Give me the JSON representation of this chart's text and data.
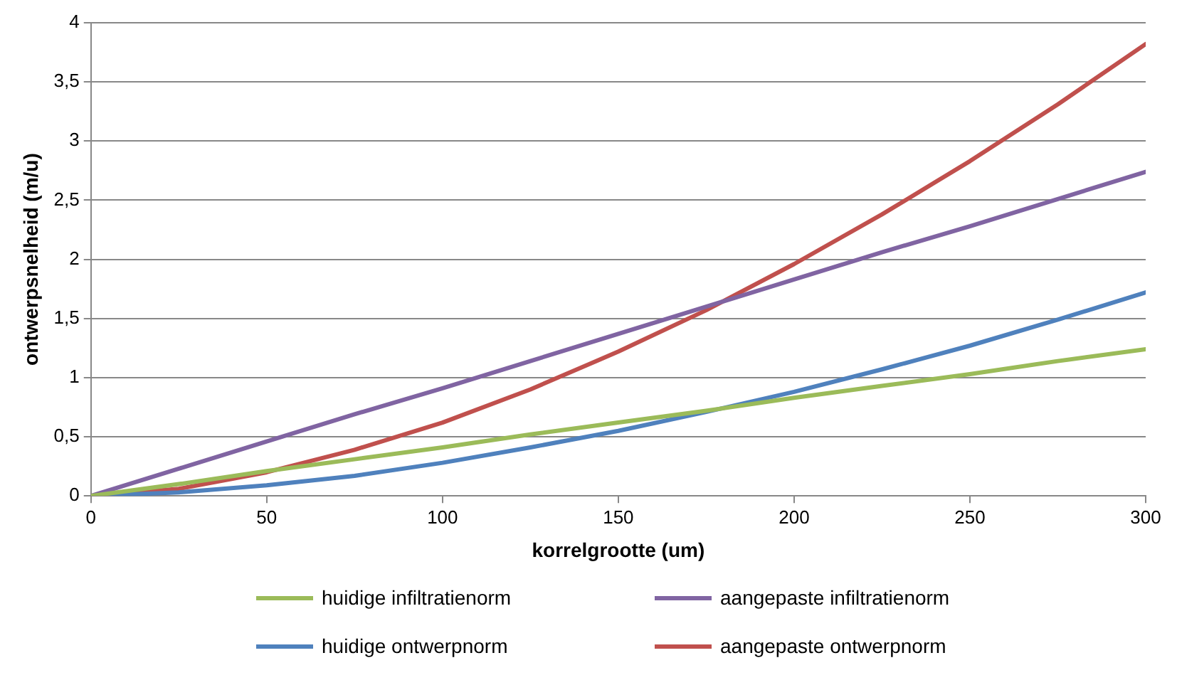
{
  "chart_data": {
    "type": "line",
    "xlabel": "korrelgrootte (um)",
    "ylabel": "ontwerpsnelheid (m/u)",
    "x": [
      0,
      25,
      50,
      75,
      100,
      125,
      150,
      175,
      200,
      225,
      250,
      275,
      300
    ],
    "series": [
      {
        "name": "huidige infiltratienorm",
        "color": "#9bbb59",
        "values": [
          0,
          0.1,
          0.21,
          0.31,
          0.41,
          0.52,
          0.62,
          0.72,
          0.83,
          0.93,
          1.03,
          1.14,
          1.24
        ]
      },
      {
        "name": "aangepaste infiltratienorm",
        "color": "#8064a2",
        "values": [
          0,
          0.23,
          0.46,
          0.69,
          0.91,
          1.14,
          1.37,
          1.6,
          1.83,
          2.06,
          2.28,
          2.51,
          2.74
        ]
      },
      {
        "name": "huidige ontwerpnorm",
        "color": "#4f81bd",
        "values": [
          0,
          0.03,
          0.09,
          0.17,
          0.28,
          0.41,
          0.55,
          0.71,
          0.88,
          1.07,
          1.27,
          1.49,
          1.72
        ]
      },
      {
        "name": "aangepaste ontwerpnorm",
        "color": "#c0504d",
        "values": [
          0,
          0.06,
          0.2,
          0.39,
          0.62,
          0.9,
          1.22,
          1.57,
          1.96,
          2.38,
          2.83,
          3.31,
          3.82
        ]
      }
    ],
    "xlim": [
      0,
      300
    ],
    "xticks": [
      0,
      50,
      100,
      150,
      200,
      250,
      300
    ],
    "ylim": [
      0,
      4
    ],
    "yticks": [
      {
        "value": 0,
        "label": "0"
      },
      {
        "value": 0.5,
        "label": "0,5"
      },
      {
        "value": 1,
        "label": "1"
      },
      {
        "value": 1.5,
        "label": "1,5"
      },
      {
        "value": 2,
        "label": "2"
      },
      {
        "value": 2.5,
        "label": "2,5"
      },
      {
        "value": 3,
        "label": "3"
      },
      {
        "value": 3.5,
        "label": "3,5"
      },
      {
        "value": 4,
        "label": "4"
      }
    ],
    "grid": "y",
    "legend": "bottom",
    "marker": "none",
    "line_style": "solid"
  }
}
